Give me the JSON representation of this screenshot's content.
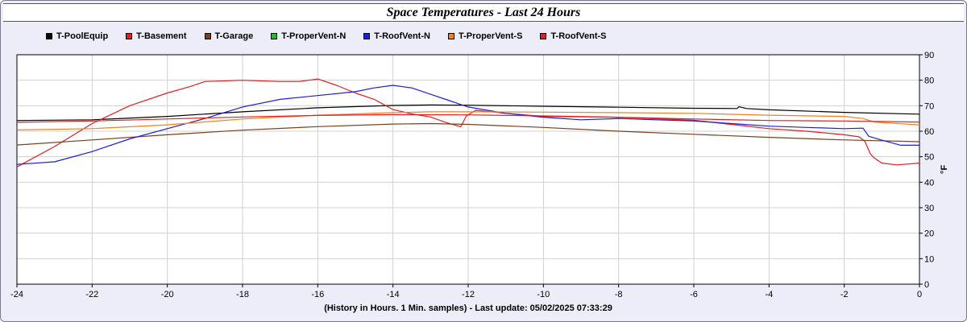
{
  "chart_data": {
    "type": "line",
    "title": "Space Temperatures - Last 24 Hours",
    "xlabel": "(History in Hours. 1 Min. samples) - Last update: 05/02/2025 07:33:29",
    "ylabel": "°F",
    "xlim": [
      -24,
      0
    ],
    "ylim": [
      0,
      90
    ],
    "xticks": [
      -24,
      -22,
      -20,
      -18,
      -16,
      -14,
      -12,
      -10,
      -8,
      -6,
      -4,
      -2,
      0
    ],
    "yticks": [
      0,
      10,
      20,
      30,
      40,
      50,
      60,
      70,
      80,
      90
    ],
    "grid": true,
    "legend_position": "top-left",
    "series": [
      {
        "name": "T-PoolEquip",
        "color": "#000000",
        "x": [
          -24,
          -22,
          -20,
          -18,
          -16,
          -14,
          -13,
          -12,
          -10,
          -8,
          -6,
          -4.85,
          -4.8,
          -4.6,
          -4,
          -2,
          0
        ],
        "y": [
          64.2,
          64.5,
          65.8,
          67.6,
          69.2,
          70.1,
          70.3,
          70.2,
          69.8,
          69.4,
          69.0,
          68.9,
          69.6,
          68.9,
          68.4,
          67.4,
          66.7
        ]
      },
      {
        "name": "T-Basement",
        "color": "#e02020",
        "x": [
          -24,
          -23,
          -22,
          -21,
          -20,
          -19.4,
          -19,
          -18,
          -17,
          -16.5,
          -16,
          -15.5,
          -15,
          -14.5,
          -14,
          -13.5,
          -13,
          -12.6,
          -12.2,
          -12.05,
          -11.8,
          -11.5,
          -11,
          -10,
          -8,
          -6,
          -4,
          -3,
          -2,
          -1.6,
          -1.45,
          -1.3,
          -1.2,
          -1,
          -0.6,
          0
        ],
        "y": [
          46,
          54,
          63,
          70,
          75,
          77.5,
          79.5,
          80,
          79.5,
          79.5,
          80.5,
          78,
          75,
          72.5,
          68.5,
          66.8,
          65.6,
          63.5,
          61.7,
          66,
          68.2,
          67.8,
          67,
          65.8,
          65.5,
          64.3,
          61,
          60,
          58.6,
          57.8,
          56,
          51,
          49.5,
          47.5,
          46.8,
          47.5
        ]
      },
      {
        "name": "T-Garage",
        "color": "#7b3f1a",
        "x": [
          -24,
          -22,
          -20,
          -18,
          -16,
          -14,
          -13,
          -12,
          -10,
          -8,
          -6,
          -4,
          -2,
          0
        ],
        "y": [
          54.6,
          56.6,
          58.6,
          60.4,
          61.8,
          62.8,
          63.0,
          62.7,
          61.5,
          60.0,
          58.8,
          57.6,
          56.6,
          55.9
        ]
      },
      {
        "name": "T-ProperVent-N",
        "color": "#20c020",
        "x": [],
        "y": []
      },
      {
        "name": "T-RoofVent-N",
        "color": "#1c1ce0",
        "x": [
          -24,
          -23,
          -22,
          -21,
          -20,
          -19,
          -18,
          -17,
          -16,
          -15,
          -14.5,
          -14,
          -13.5,
          -13,
          -12.5,
          -12,
          -11,
          -10,
          -9,
          -8,
          -7,
          -6,
          -5,
          -4,
          -3,
          -2,
          -1.5,
          -1.35,
          -1,
          -0.5,
          0
        ],
        "y": [
          47,
          48,
          52,
          57,
          61,
          65,
          69.5,
          72.5,
          74,
          75.5,
          77,
          78,
          77,
          74.5,
          72,
          69.5,
          67,
          65.5,
          64.5,
          65,
          64.5,
          64,
          63,
          62,
          61.5,
          61,
          61.2,
          58,
          56.5,
          54.5,
          54.5
        ]
      },
      {
        "name": "T-ProperVent-S",
        "color": "#f08020",
        "x": [
          -24,
          -22,
          -20,
          -18,
          -16,
          -14,
          -13,
          -12,
          -10,
          -8,
          -6,
          -4,
          -2,
          -1.5,
          -1.2,
          0
        ],
        "y": [
          60.5,
          61,
          62.5,
          64.8,
          66.3,
          67.3,
          67.6,
          67.6,
          67.5,
          67.3,
          67,
          66.3,
          65.8,
          65,
          63.6,
          62.5
        ]
      },
      {
        "name": "T-RoofVent-S",
        "color": "#e02020",
        "x": [
          -24,
          -22,
          -20,
          -18,
          -16,
          -14,
          -12,
          -10,
          -8,
          -6,
          -4,
          -2,
          0
        ],
        "y": [
          63.5,
          64,
          64.8,
          65.6,
          66.2,
          66.5,
          66.4,
          66.0,
          65.5,
          64.8,
          64.2,
          64.0,
          63.6
        ]
      }
    ]
  }
}
